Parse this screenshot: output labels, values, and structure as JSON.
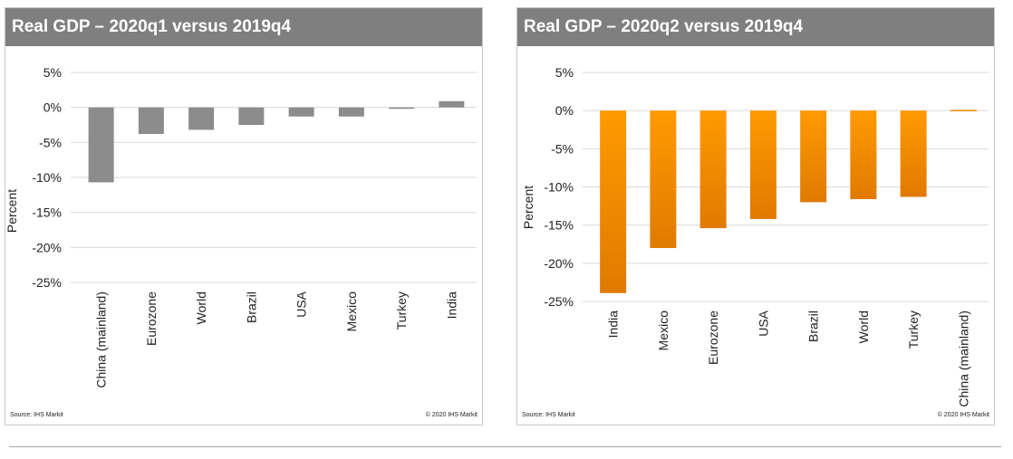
{
  "chart_data": [
    {
      "type": "bar",
      "title": "Real GDP – 2020q1 versus 2019q4",
      "ylabel": "Percent",
      "xlabel": "",
      "ylim": [
        -25,
        5
      ],
      "yticks": [
        "5%",
        "0%",
        "-5%",
        "-10%",
        "-15%",
        "-20%",
        "-25%"
      ],
      "categories": [
        "China (mainland)",
        "Eurozone",
        "World",
        "Brazil",
        "USA",
        "Mexico",
        "Turkey",
        "India"
      ],
      "values": [
        -10.7,
        -3.8,
        -3.2,
        -2.5,
        -1.3,
        -1.3,
        -0.2,
        0.9
      ],
      "grid": true,
      "bar_color": "#8c8c8c",
      "source": "Source: IHS Markit",
      "copyright": "© 2020 IHS Markit"
    },
    {
      "type": "bar",
      "title": "Real GDP – 2020q2 versus 2019q4",
      "ylabel": "Percent",
      "xlabel": "",
      "ylim": [
        -25,
        5
      ],
      "yticks": [
        "5%",
        "0%",
        "-5%",
        "-10%",
        "-15%",
        "-20%",
        "-25%"
      ],
      "categories": [
        "India",
        "Mexico",
        "Eurozone",
        "USA",
        "Brazil",
        "World",
        "Turkey",
        "China (mainland)"
      ],
      "values": [
        -23.9,
        -18.0,
        -15.4,
        -14.2,
        -12.0,
        -11.6,
        -11.3,
        0.1
      ],
      "grid": true,
      "bar_color": "#f08c00",
      "source": "Source: IHS Markit",
      "copyright": "© 2020 IHS Markit"
    }
  ]
}
